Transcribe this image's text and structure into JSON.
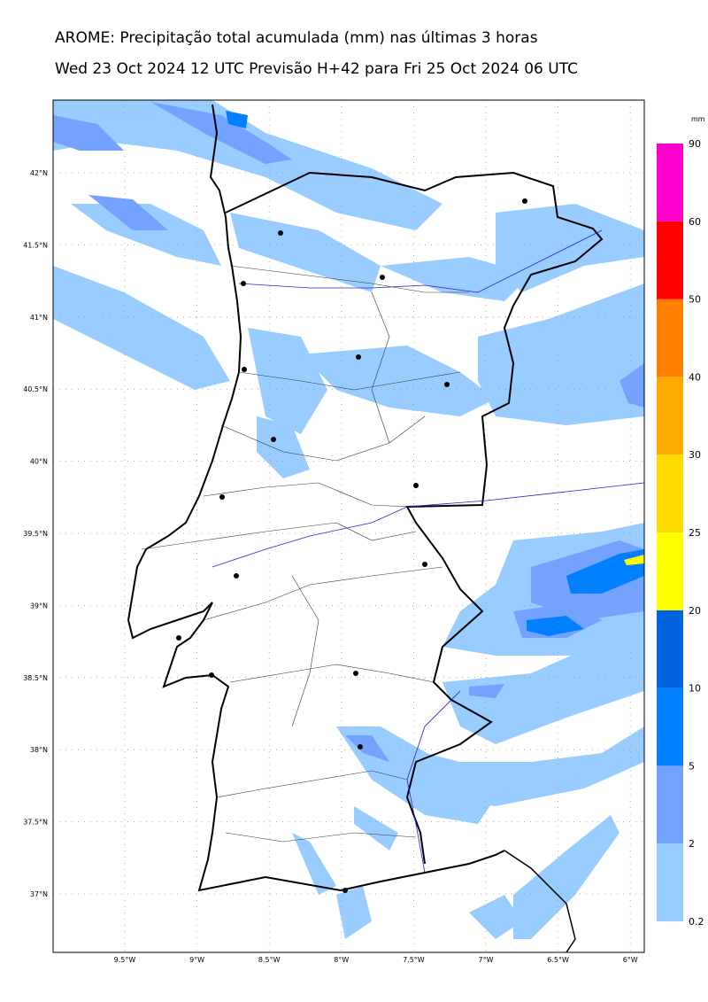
{
  "header": {
    "title": "AROME: Precipitação total acumulada (mm) nas últimas 3 horas",
    "subtitle": "Wed 23 Oct 2024 12 UTC Previsão H+42 para Fri 25 Oct 2024 06 UTC"
  },
  "map": {
    "lat_labels": [
      "42°N",
      "41.5°N",
      "41°N",
      "40.5°N",
      "40°N",
      "39.5°N",
      "39°N",
      "38.5°N",
      "38°N",
      "37.5°N",
      "37°N"
    ],
    "lon_labels": [
      "9.5°W",
      "9°W",
      "8.5°W",
      "8°W",
      "7.5°W",
      "7°W",
      "6.5°W",
      "6°W"
    ]
  },
  "colorbar": {
    "unit": "mm",
    "levels": [
      0.2,
      2,
      5,
      10,
      20,
      25,
      30,
      40,
      50,
      60,
      90
    ],
    "colors": [
      "#99ccff",
      "#74a2ff",
      "#0080ff",
      "#0064dc",
      "#ffff00",
      "#ffdc00",
      "#ffaa00",
      "#ff8000",
      "#ff0000",
      "#ff00cc"
    ]
  }
}
